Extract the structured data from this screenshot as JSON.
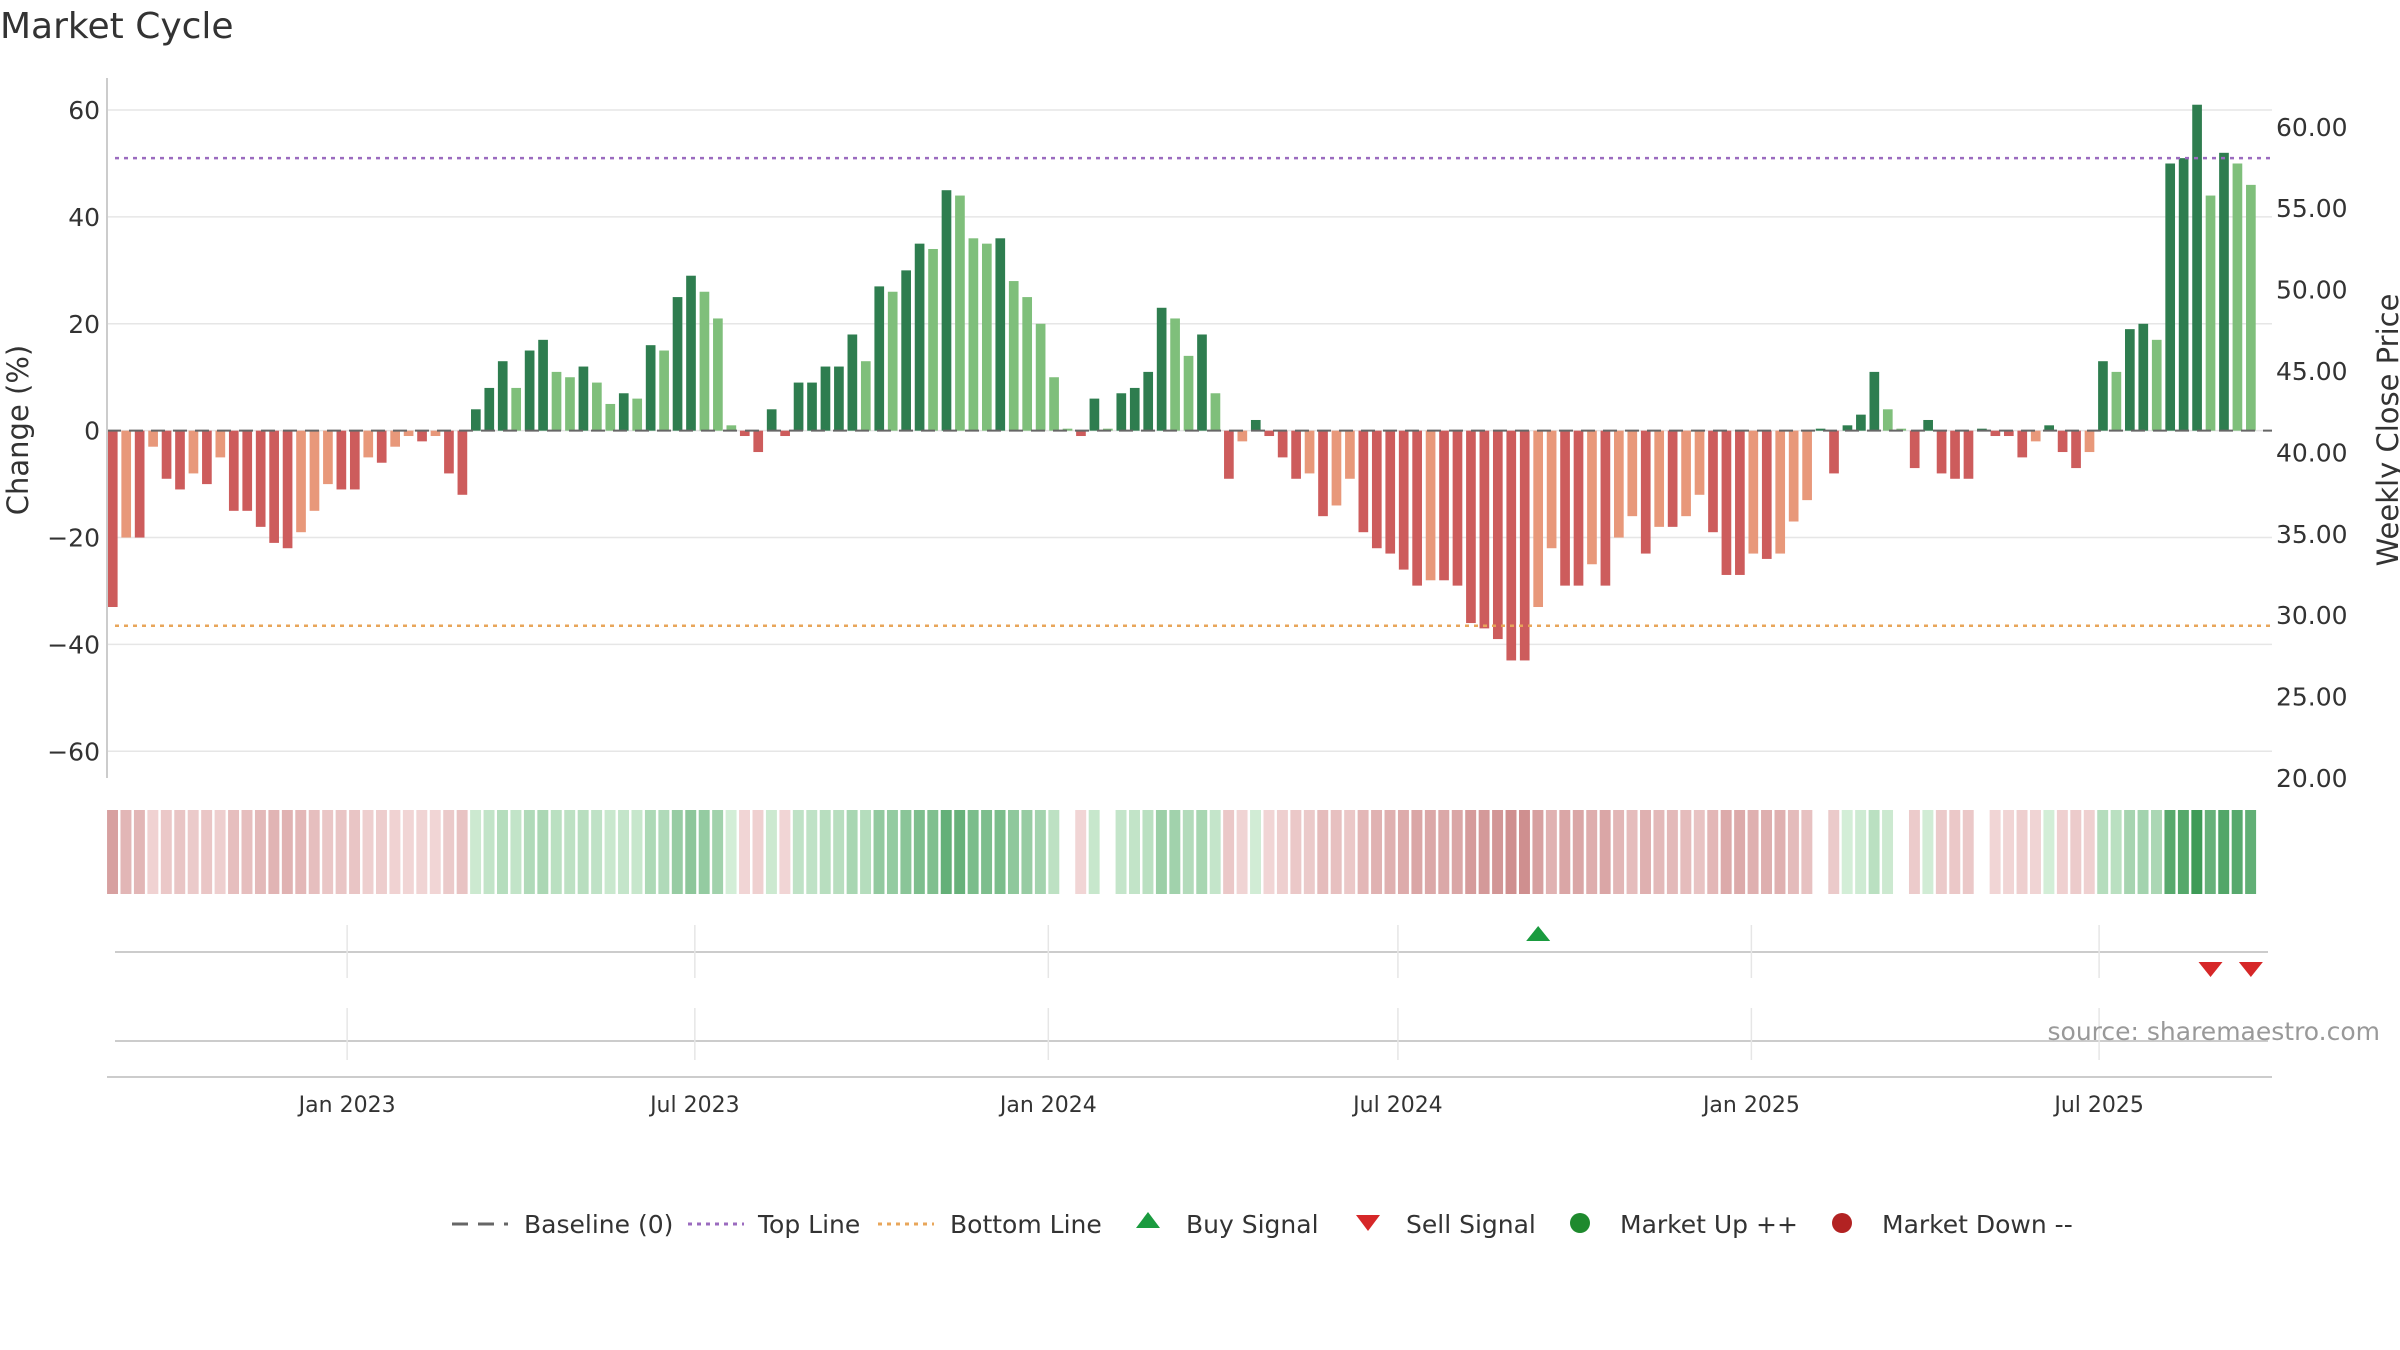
{
  "chart_data": {
    "type": "bar",
    "title": "Market Cycle",
    "ylabel": "Change (%)",
    "y2label": "Weekly Close Price",
    "ylim": [
      -65,
      66
    ],
    "y_ticks": [
      60,
      40,
      20,
      0,
      -20,
      -40,
      -60
    ],
    "y_tick_labels": [
      "60",
      "40",
      "20",
      "0",
      "−20",
      "−40",
      "−60"
    ],
    "y2lim": [
      20,
      63
    ],
    "y2_ticks": [
      60,
      55,
      50,
      45,
      40,
      35,
      30,
      25,
      20
    ],
    "y2_tick_labels": [
      "60.00",
      "55.00",
      "50.00",
      "45.00",
      "40.00",
      "35.00",
      "30.00",
      "25.00",
      "20.00"
    ],
    "x_start": "2022-08-29",
    "x_end": "2025-09-29",
    "x_ticks": [
      {
        "date": "2023-01-01",
        "label": "Jan 2023"
      },
      {
        "date": "2023-07-01",
        "label": "Jul 2023"
      },
      {
        "date": "2024-01-01",
        "label": "Jan 2024"
      },
      {
        "date": "2024-07-01",
        "label": "Jul 2024"
      },
      {
        "date": "2025-01-01",
        "label": "Jan 2025"
      },
      {
        "date": "2025-07-01",
        "label": "Jul 2025"
      }
    ],
    "first_week": "2022-09-01",
    "week_days": 7,
    "values": [
      -33,
      -20,
      -20,
      -3,
      -9,
      -11,
      -8,
      -10,
      -5,
      -15,
      -15,
      -18,
      -21,
      -22,
      -19,
      -15,
      -10,
      -11,
      -11,
      -5,
      -6,
      -3,
      -1,
      -2,
      -1,
      -8,
      -12,
      4,
      8,
      13,
      8,
      15,
      17,
      11,
      10,
      12,
      9,
      5,
      7,
      6,
      16,
      15,
      25,
      29,
      26,
      21,
      1,
      -1,
      -4,
      4,
      -1,
      9,
      9,
      12,
      12,
      18,
      13,
      27,
      26,
      30,
      35,
      34,
      45,
      44,
      36,
      35,
      36,
      28,
      25,
      20,
      10,
      0,
      -1,
      6,
      0,
      7,
      8,
      11,
      23,
      21,
      14,
      18,
      7,
      -9,
      -2,
      2,
      -1,
      -5,
      -9,
      -8,
      -16,
      -14,
      -9,
      -19,
      -22,
      -23,
      -26,
      -29,
      -28,
      -28,
      -29,
      -36,
      -37,
      -39,
      -43,
      -43,
      -33,
      -22,
      -29,
      -29,
      -25,
      -29,
      -20,
      -16,
      -23,
      -18,
      -18,
      -16,
      -12,
      -19,
      -27,
      -27,
      -23,
      -24,
      -23,
      -17,
      -13,
      0,
      -8,
      1,
      3,
      11,
      4,
      0,
      -7,
      2,
      -8,
      -9,
      -9,
      0,
      -1,
      -1,
      -5,
      -2,
      1,
      -4,
      -7,
      -4,
      13,
      11,
      19,
      20,
      17,
      50,
      51,
      61,
      44,
      52,
      50,
      46
    ],
    "bands": {
      "top_line": 51,
      "bottom_line": -36.5,
      "baseline": 0
    },
    "buy_signals": [
      "2024-09-12"
    ],
    "sell_signals": [
      "2025-08-28",
      "2025-09-18"
    ],
    "legend": {
      "placement": "bottom-center",
      "items": [
        {
          "label": "Baseline (0)",
          "marker": "dash-line"
        },
        {
          "label": "Top Line",
          "marker": "dotted-purple"
        },
        {
          "label": "Bottom Line",
          "marker": "dotted-orange"
        },
        {
          "label": "Buy Signal",
          "marker": "triangle-up"
        },
        {
          "label": "Sell Signal",
          "marker": "triangle-down"
        },
        {
          "label": "Market Up ++",
          "marker": "circle-green"
        },
        {
          "label": "Market Down --",
          "marker": "circle-red"
        }
      ]
    },
    "source_note": "source: sharemaestro.com",
    "grid": true,
    "colors": {
      "up_strong": "#2e7d4f",
      "up_weak": "#7fbf7b",
      "down_strong": "#cd5c5c",
      "down_weak": "#e8987a",
      "top_line": "#9b6bbf",
      "bottom_line": "#e8a65a",
      "baseline": "#666666",
      "buy": "#1a9b3f",
      "sell": "#d62728",
      "market_up": "#1e8a2e",
      "market_down": "#b22222",
      "grid": "#e6e6e6"
    }
  }
}
